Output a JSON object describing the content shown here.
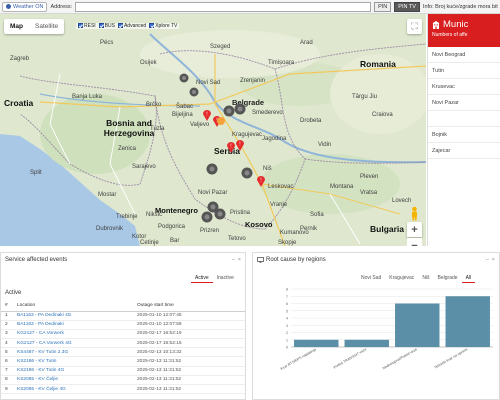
{
  "topbar": {
    "weather_label": "Weather ON",
    "address_label": "Address:",
    "address_value": "",
    "pin_label": "PIN",
    "pin_tv_label": "PIN TV",
    "info_text": "Info: Broj kuće/zgrade mora biti"
  },
  "map": {
    "type_map": "Map",
    "type_satellite": "Satellite",
    "layers": [
      "RESI",
      "BUS",
      "Advanced",
      "Xplore TV"
    ],
    "countries": [
      "Croatia",
      "Bosnia and Herzegovina",
      "Serbia",
      "Montenegro",
      "Kosovo",
      "Romania",
      "Bulgaria"
    ],
    "cities": [
      "Belgrade",
      "Sarajevo",
      "Zagreb",
      "Banja Luka",
      "Split",
      "Niš",
      "Timișoara",
      "Craiova",
      "Sofia",
      "Skopje",
      "Podgorica",
      "Pristina",
      "Novi Sad",
      "Kragujevac",
      "Pleven",
      "Vidin",
      "Mostar",
      "Tuzla",
      "Osijek",
      "Szeged",
      "Pécs",
      "Arad",
      "Drobeta",
      "Târgu Jiu",
      "Montana",
      "Vratsa",
      "Lovech",
      "Pernik",
      "Kumanovo",
      "Tetovo",
      "Prizren",
      "Dubrovnik",
      "Kotor",
      "Cetinje",
      "Novi Pazar",
      "Valjevo",
      "Šabac",
      "Zrenjanin",
      "Smederevo",
      "Jagodina",
      "Leskovac",
      "Vranje",
      "Zenica",
      "Bijeljina",
      "Brčko",
      "Trebinje",
      "Nikšić",
      "Bar"
    ],
    "alert_markers": 6,
    "cluster_markers": 9
  },
  "municipality": {
    "title": "Munic",
    "subtitle": "Numbers of affe",
    "items": [
      "Novi Beograd",
      "Tutin",
      "Krusevac",
      "Novi Pazar",
      "",
      "Bojnik",
      "Zajecar"
    ]
  },
  "events_panel": {
    "title": "Service affected events",
    "tabs": [
      "Active",
      "Inactive"
    ],
    "section": "Active",
    "columns": [
      "#",
      "Location",
      "Outage start time"
    ],
    "rows": [
      [
        "1",
        "BA1163 - PA Dedinaki 4G",
        "2025-01-10 12:07:45"
      ],
      [
        "2",
        "BA1163 - PA Dedinaki",
        "2025-01-10 12:07:58"
      ],
      [
        "3",
        "KG2127 - CA Vorwerk",
        "2025-02-17 16:52:19"
      ],
      [
        "4",
        "KG2127 - CA Vorwerk 4G",
        "2025-02-17 16:52:16"
      ],
      [
        "5",
        "KS4487 - KV Tutin 2.3G",
        "2025-02-13 10:13:32"
      ],
      [
        "6",
        "KS2186 - KV Tutin",
        "2025-02-13 11:31:52"
      ],
      [
        "7",
        "KS2186 - KV Tutin 4G",
        "2025-02-13 11:31:52"
      ],
      [
        "8",
        "KS2065 - KV Čeljie",
        "2025-02-13 11:31:52"
      ],
      [
        "9",
        "KS2065 - KV Čeljie 4G",
        "2025-02-13 11:31:52"
      ]
    ]
  },
  "root_cause_panel": {
    "title": "Root cause by regions",
    "tabs": [
      "Novi Sad",
      "Kragujevac",
      "Niš",
      "Belgrade",
      "All"
    ]
  },
  "chart_data": {
    "type": "bar",
    "title": "Root cause by regions",
    "categories": [
      "Kvar RTS/EPS napajanja",
      "Prekid TRANSSIT veze",
      "Nedostupna/Prekid veze",
      "Tehnički kvar na opremi"
    ],
    "values": [
      1,
      1,
      6,
      7
    ],
    "ylim": [
      0,
      8
    ],
    "yticks": [
      0,
      1,
      2,
      3,
      4,
      5,
      6,
      7,
      8
    ],
    "bar_color": "#5b8fa8",
    "grid": true
  }
}
